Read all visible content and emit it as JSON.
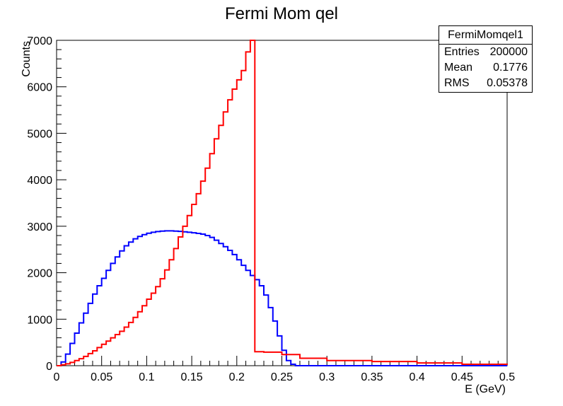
{
  "chart_data": {
    "type": "line",
    "title": "Fermi Mom qel",
    "xlabel": "E (GeV)",
    "ylabel": "Counts",
    "xlim": [
      0,
      0.5
    ],
    "ylim": [
      0,
      7000
    ],
    "x_ticks": [
      "0",
      "0.05",
      "0.1",
      "0.15",
      "0.2",
      "0.25",
      "0.3",
      "0.35",
      "0.4",
      "0.45",
      "0.5"
    ],
    "y_ticks": [
      "0",
      "1000",
      "2000",
      "3000",
      "4000",
      "5000",
      "6000",
      "7000"
    ],
    "grid": false,
    "legend": "none",
    "series": [
      {
        "color": "#0000ff",
        "x": [
          0,
          0.005,
          0.01,
          0.015,
          0.02,
          0.025,
          0.03,
          0.035,
          0.04,
          0.045,
          0.05,
          0.055,
          0.06,
          0.065,
          0.07,
          0.075,
          0.08,
          0.085,
          0.09,
          0.095,
          0.1,
          0.105,
          0.11,
          0.115,
          0.12,
          0.125,
          0.13,
          0.135,
          0.14,
          0.145,
          0.15,
          0.155,
          0.16,
          0.165,
          0.17,
          0.175,
          0.18,
          0.185,
          0.19,
          0.195,
          0.2,
          0.205,
          0.21,
          0.215,
          0.22,
          0.225,
          0.23,
          0.235,
          0.24,
          0.245,
          0.25,
          0.255,
          0.26,
          0.265,
          0.27,
          0.3,
          0.35,
          0.4,
          0.45,
          0.5
        ],
        "y": [
          0,
          80,
          250,
          480,
          700,
          920,
          1130,
          1340,
          1540,
          1720,
          1880,
          2050,
          2200,
          2340,
          2470,
          2580,
          2660,
          2730,
          2780,
          2820,
          2850,
          2870,
          2885,
          2895,
          2900,
          2900,
          2895,
          2890,
          2880,
          2870,
          2860,
          2845,
          2830,
          2800,
          2760,
          2700,
          2630,
          2560,
          2480,
          2390,
          2280,
          2160,
          2050,
          1940,
          1850,
          1720,
          1520,
          1250,
          960,
          640,
          330,
          110,
          30,
          0,
          0,
          0,
          0,
          0,
          0,
          0
        ]
      },
      {
        "color": "#ff0000",
        "x": [
          0,
          0.005,
          0.01,
          0.015,
          0.02,
          0.025,
          0.03,
          0.035,
          0.04,
          0.045,
          0.05,
          0.055,
          0.06,
          0.065,
          0.07,
          0.075,
          0.08,
          0.085,
          0.09,
          0.095,
          0.1,
          0.105,
          0.11,
          0.115,
          0.12,
          0.125,
          0.13,
          0.135,
          0.14,
          0.145,
          0.15,
          0.155,
          0.16,
          0.165,
          0.17,
          0.175,
          0.18,
          0.185,
          0.19,
          0.195,
          0.2,
          0.205,
          0.21,
          0.215,
          0.2195,
          0.22,
          0.23,
          0.25,
          0.27,
          0.3,
          0.35,
          0.4,
          0.45,
          0.5
        ],
        "y": [
          0,
          20,
          40,
          70,
          110,
          150,
          200,
          260,
          320,
          390,
          460,
          530,
          600,
          670,
          740,
          830,
          930,
          1040,
          1160,
          1290,
          1430,
          1560,
          1700,
          1870,
          2060,
          2280,
          2520,
          2770,
          3000,
          3230,
          3470,
          3700,
          3970,
          4250,
          4560,
          4880,
          5170,
          5460,
          5720,
          5950,
          6150,
          6350,
          6750,
          7000,
          7000,
          300,
          290,
          240,
          160,
          110,
          90,
          60,
          30,
          20
        ]
      }
    ],
    "stats": {
      "name": "FermiMomqel1",
      "rows": [
        {
          "label": "Entries",
          "value": "200000"
        },
        {
          "label": "Mean",
          "value": "0.1776"
        },
        {
          "label": "RMS",
          "value": "0.05378"
        }
      ]
    }
  }
}
